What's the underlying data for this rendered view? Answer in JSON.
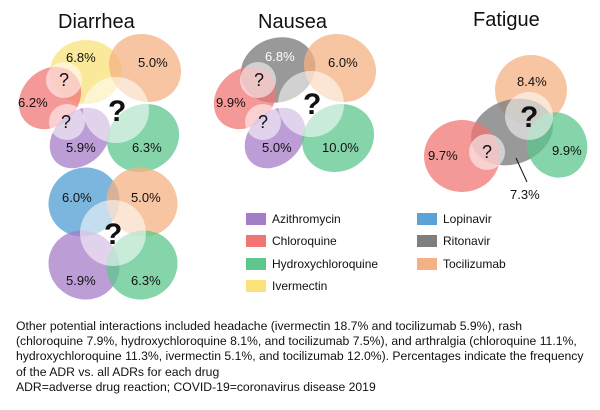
{
  "titles": {
    "diarrhea": "Diarrhea",
    "nausea": "Nausea",
    "fatigue": "Fatigue"
  },
  "unknown_mark": "?",
  "colors": {
    "Azithromycin": "#a57cc8",
    "Chloroquine": "#f07676",
    "Hydroxychloroquine": "#5ec78e",
    "Ivermectin": "#f9e27a",
    "Lopinavir": "#5ba3d6",
    "Ritonavir": "#7f7f7f",
    "Tocilizumab": "#f4b183"
  },
  "diarrhea": {
    "Ivermectin": "6.8%",
    "Tocilizumab": "5.0%",
    "Chloroquine": "6.2%",
    "Azithromycin": "5.9%",
    "Hydroxychloroquine": "6.3%"
  },
  "nausea": {
    "Ritonavir": "6.8%",
    "Tocilizumab": "6.0%",
    "Chloroquine": "9.9%",
    "Azithromycin": "5.0%",
    "Hydroxychloroquine": "10.0%"
  },
  "fatigue": {
    "Tocilizumab": "8.4%",
    "Chloroquine": "9.7%",
    "Hydroxychloroquine": "9.9%",
    "Ritonavir": "7.3%"
  },
  "diarrhea_lopinavir": {
    "Lopinavir": "6.0%",
    "Tocilizumab": "5.0%",
    "Azithromycin": "5.9%",
    "Hydroxychloroquine": "6.3%"
  },
  "legend": {
    "left": [
      "Azithromycin",
      "Chloroquine",
      "Hydroxychloroquine",
      "Ivermectin"
    ],
    "right": [
      "Lopinavir",
      "Ritonavir",
      "Tocilizumab"
    ]
  },
  "footnote": {
    "text": "Other potential interactions included headache (ivermectin 18.7% and tocilizumab 5.9%), rash (chloroquine 7.9%, hydroxychloroquine 8.1%, and tocilizumab 7.5%), and arthralgia (chloroquine 11.1%, hydroxychloroquine 11.3%, ivermectin 5.1%, and tocilizumab 12.0%). Percentages indicate the frequency of the ADR vs. all ADRs for each drug",
    "abbreviations": "ADR=adverse drug reaction; COVID-19=coronavirus disease 2019"
  }
}
